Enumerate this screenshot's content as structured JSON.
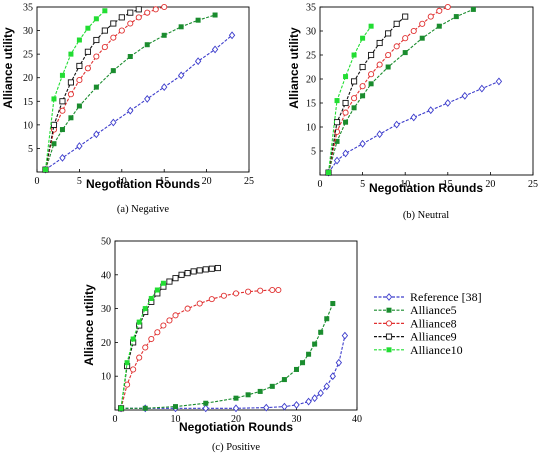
{
  "chart_data": [
    {
      "type": "line",
      "caption": "(a) Negative",
      "xlabel": "Negotiation Rounds",
      "ylabel": "Alliance utility",
      "xlim": [
        0,
        25
      ],
      "ylim": [
        0,
        35
      ],
      "xticks": [
        0,
        5,
        10,
        15,
        20,
        25
      ],
      "yticks": [
        5,
        10,
        15,
        20,
        25,
        30,
        35
      ],
      "series": [
        {
          "name": "Reference [38]",
          "x": [
            1,
            3,
            5,
            7,
            9,
            11,
            13,
            15,
            17,
            19,
            21,
            23
          ],
          "y": [
            0.5,
            3,
            5.5,
            8,
            10.5,
            13,
            15.5,
            18,
            20.5,
            23.5,
            26,
            29
          ]
        },
        {
          "name": "Alliance5",
          "x": [
            1,
            2,
            3,
            4,
            5,
            7,
            9,
            11,
            13,
            15,
            17,
            19,
            21
          ],
          "y": [
            0.5,
            6,
            9,
            11.5,
            14,
            18,
            21.5,
            24.5,
            27,
            29,
            30.8,
            32.2,
            33.3
          ]
        },
        {
          "name": "Alliance8",
          "x": [
            1,
            2,
            3,
            4,
            5,
            6,
            7,
            8,
            9,
            10,
            11,
            12,
            13,
            14,
            15
          ],
          "y": [
            0.5,
            9,
            13,
            16.5,
            19.5,
            22,
            24.5,
            26.5,
            28.5,
            30,
            31.5,
            32.8,
            33.8,
            34.5,
            35
          ]
        },
        {
          "name": "Alliance9",
          "x": [
            1,
            2,
            3,
            4,
            5,
            6,
            7,
            8,
            9,
            10,
            11,
            12
          ],
          "y": [
            0.5,
            10,
            15,
            19,
            22.5,
            25.5,
            28,
            30,
            31.5,
            32.8,
            33.8,
            34.5
          ]
        },
        {
          "name": "Alliance10",
          "x": [
            1,
            2,
            3,
            4,
            5,
            6,
            7,
            8
          ],
          "y": [
            0.5,
            15.5,
            20.5,
            25,
            28,
            30.5,
            32.5,
            34.2
          ]
        }
      ]
    },
    {
      "type": "line",
      "caption": "(b) Neutral",
      "xlabel": "Negotiation Rounds",
      "ylabel": "Alliance utility",
      "xlim": [
        0,
        25
      ],
      "ylim": [
        0,
        35
      ],
      "xticks": [
        0,
        5,
        10,
        15,
        20,
        25
      ],
      "yticks": [
        5,
        10,
        15,
        20,
        25,
        30,
        35
      ],
      "series": [
        {
          "name": "Reference [38]",
          "x": [
            1,
            2,
            3,
            5,
            7,
            9,
            11,
            13,
            15,
            17,
            19,
            21
          ],
          "y": [
            0.5,
            3,
            4.5,
            6.5,
            8.5,
            10.5,
            12,
            13.5,
            15,
            16.5,
            18,
            19.5
          ]
        },
        {
          "name": "Alliance5",
          "x": [
            1,
            2,
            3,
            4,
            5,
            6,
            8,
            10,
            12,
            14,
            16,
            18
          ],
          "y": [
            0.5,
            7,
            11,
            14,
            16.5,
            19,
            22.5,
            25.5,
            28.5,
            31,
            33,
            34.5
          ]
        },
        {
          "name": "Alliance8",
          "x": [
            1,
            2,
            3,
            4,
            5,
            6,
            7,
            8,
            9,
            10,
            11,
            12,
            13,
            14,
            15
          ],
          "y": [
            0.5,
            9,
            13,
            16,
            18.5,
            21,
            23,
            25,
            26.8,
            28.5,
            30,
            31.5,
            33,
            34.2,
            35
          ]
        },
        {
          "name": "Alliance9",
          "x": [
            1,
            2,
            3,
            4,
            5,
            6,
            7,
            8,
            9,
            10
          ],
          "y": [
            0.5,
            11,
            15,
            19.5,
            22.5,
            25,
            27.5,
            29.5,
            31.5,
            33
          ]
        },
        {
          "name": "Alliance10",
          "x": [
            1,
            2,
            3,
            4,
            5,
            6
          ],
          "y": [
            0.5,
            15.5,
            20.5,
            25,
            28.5,
            31
          ]
        }
      ]
    },
    {
      "type": "line",
      "caption": "(c) Positive",
      "xlabel": "Negotiation Rounds",
      "ylabel": "Alliance utility",
      "xlim": [
        0,
        40
      ],
      "ylim": [
        0,
        50
      ],
      "xticks": [
        0,
        10,
        20,
        30,
        40
      ],
      "yticks": [
        10,
        20,
        30,
        40,
        50
      ],
      "legend": "right",
      "series": [
        {
          "name": "Reference [38]",
          "x": [
            1,
            5,
            10,
            15,
            20,
            25,
            28,
            30,
            32,
            33,
            34,
            35,
            36,
            37,
            38
          ],
          "y": [
            0.5,
            0.5,
            0.5,
            0.5,
            0.5,
            0.7,
            1,
            1.5,
            2.5,
            3.5,
            5,
            7,
            10,
            14,
            22
          ]
        },
        {
          "name": "Alliance5",
          "x": [
            1,
            5,
            10,
            15,
            20,
            22,
            24,
            26,
            28,
            30,
            31,
            32,
            33,
            34,
            35,
            36
          ],
          "y": [
            0.5,
            0.5,
            1,
            2,
            3.5,
            4.5,
            5.5,
            7,
            9,
            12,
            14,
            16.5,
            19.5,
            23,
            27,
            31.5
          ]
        },
        {
          "name": "Alliance8",
          "x": [
            1,
            2,
            3,
            4,
            5,
            6,
            7,
            8,
            9,
            10,
            12,
            14,
            16,
            18,
            20,
            22,
            24,
            26,
            27
          ],
          "y": [
            0.5,
            7.5,
            12,
            15.5,
            18.5,
            21,
            23,
            25,
            26.5,
            28,
            30,
            31.5,
            32.8,
            33.8,
            34.5,
            35,
            35.3,
            35.5,
            35.5
          ]
        },
        {
          "name": "Alliance9",
          "x": [
            1,
            2,
            3,
            4,
            5,
            6,
            7,
            8,
            9,
            10,
            11,
            12,
            13,
            14,
            15,
            16,
            17
          ],
          "y": [
            0.5,
            13,
            20,
            25,
            29,
            32,
            34.5,
            36.5,
            38,
            39,
            40,
            40.5,
            41,
            41.3,
            41.6,
            41.8,
            42
          ]
        },
        {
          "name": "Alliance10",
          "x": [
            1,
            2,
            3,
            4,
            5,
            6,
            7,
            8
          ],
          "y": [
            0.5,
            14,
            21,
            26,
            30,
            33,
            35.5,
            37.5
          ]
        }
      ]
    }
  ],
  "legend_items": [
    "Reference [38]",
    "Alliance5",
    "Alliance8",
    "Alliance9",
    "Alliance10"
  ],
  "colors": {
    "Reference [38]": "#3d3dcc",
    "Alliance5": "#1a8c2e",
    "Alliance8": "#e03030",
    "Alliance9": "#111111",
    "Alliance10": "#22dd33"
  },
  "markers": {
    "Reference [38]": "diamond",
    "Alliance5": "square-filled",
    "Alliance8": "circle-open",
    "Alliance9": "square-open",
    "Alliance10": "square-filled"
  }
}
